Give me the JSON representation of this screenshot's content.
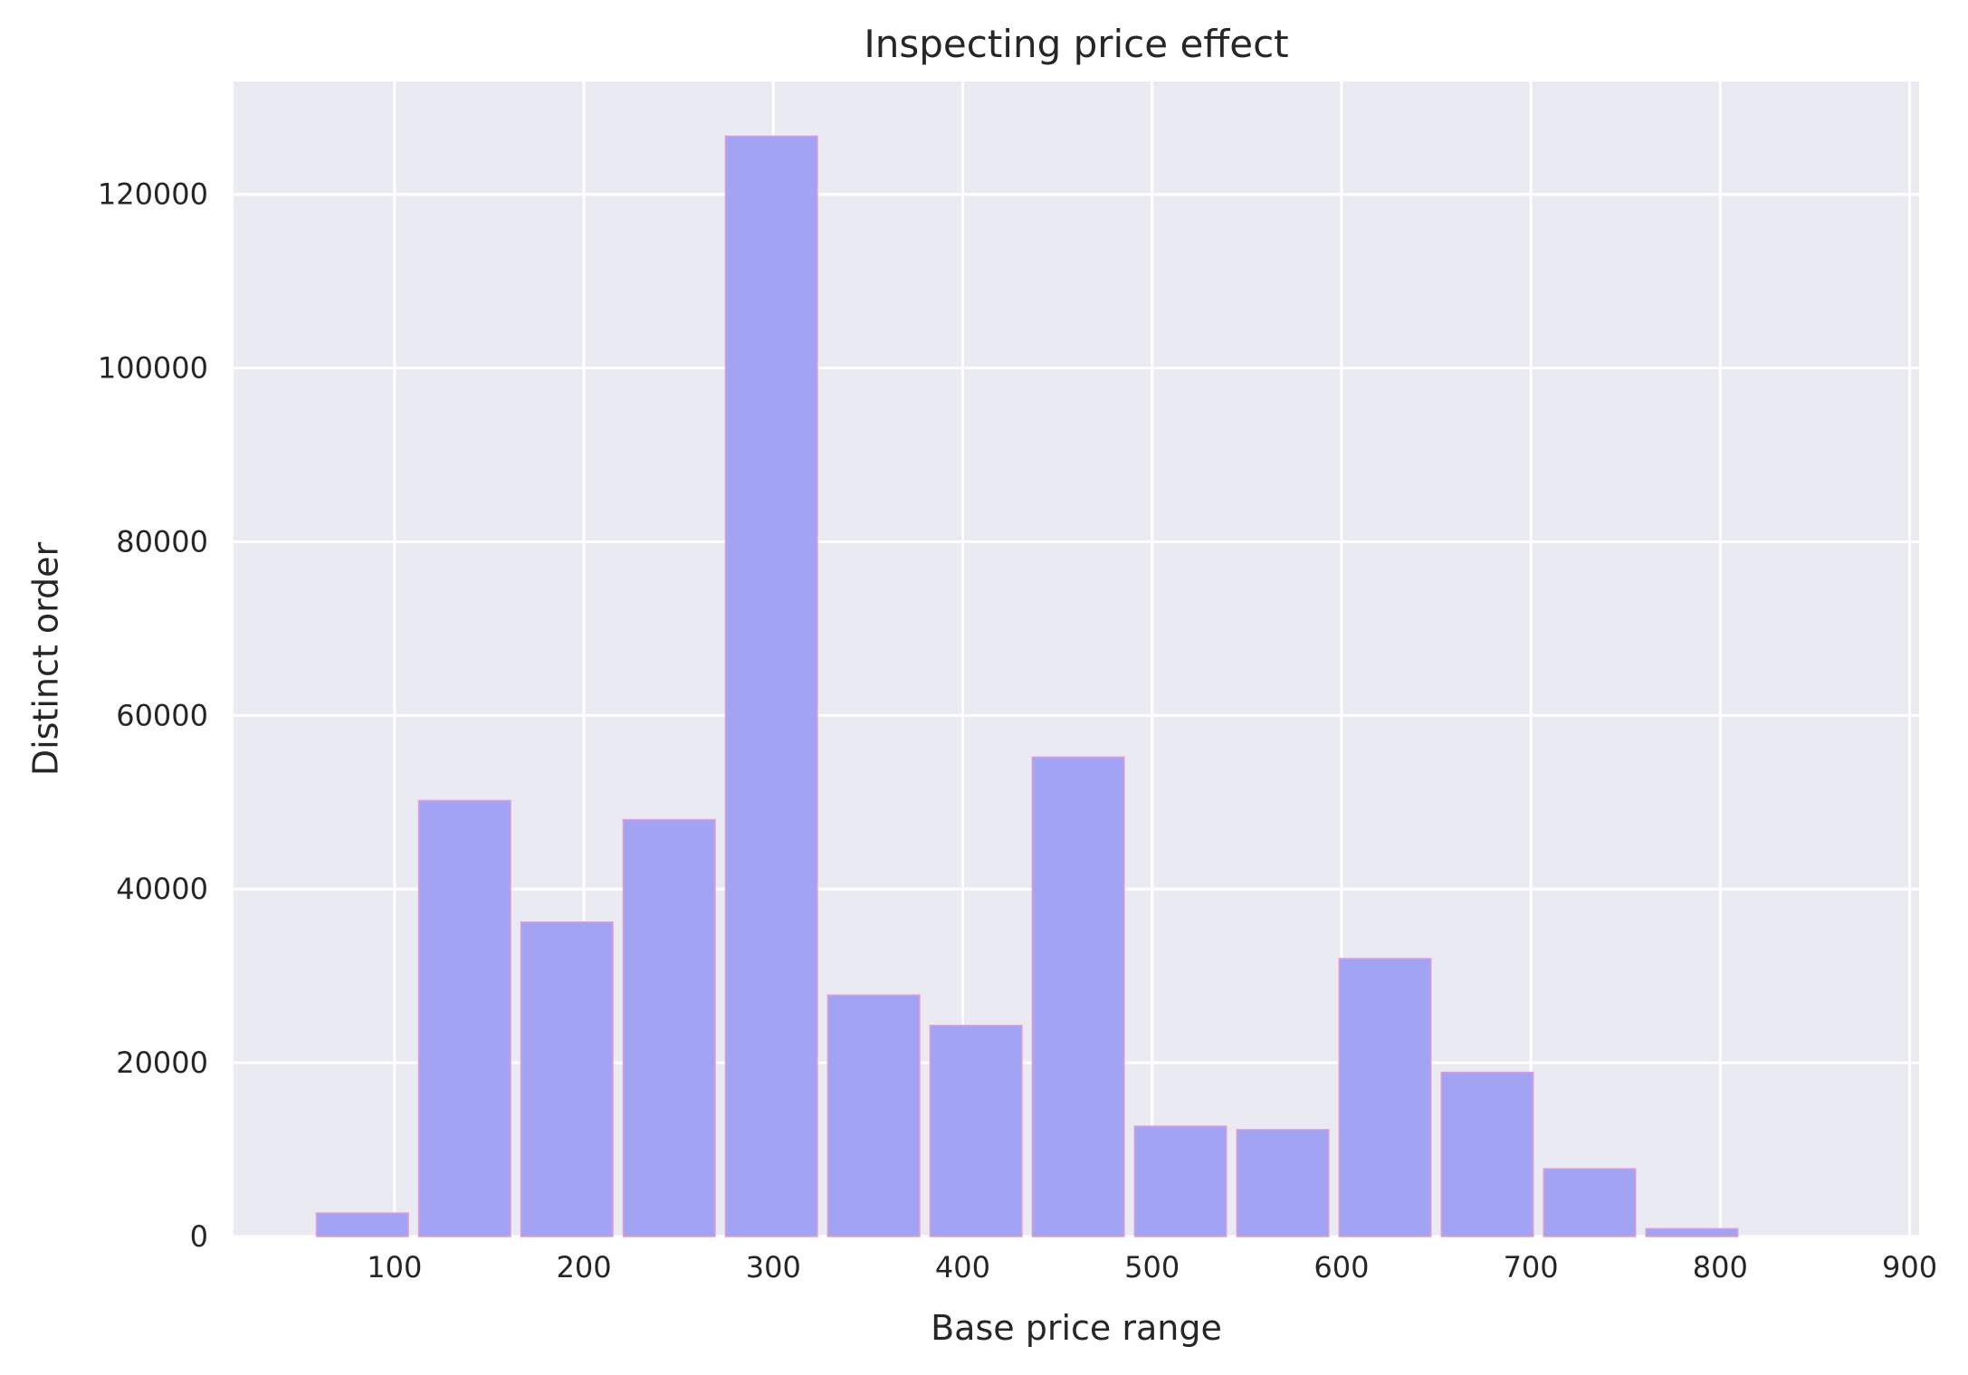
{
  "chart_data": {
    "type": "bar",
    "title": "Inspecting price effect",
    "xlabel": "Base price range",
    "ylabel": "Distinct order",
    "xlim": [
      15,
      905
    ],
    "ylim": [
      0,
      133000
    ],
    "x_ticks": [
      100,
      200,
      300,
      400,
      500,
      600,
      700,
      800,
      900
    ],
    "y_ticks": [
      0,
      20000,
      40000,
      60000,
      80000,
      100000,
      120000
    ],
    "grid": true,
    "bar_width": 48.5,
    "bars": [
      {
        "x": 83,
        "value": 2700
      },
      {
        "x": 137,
        "value": 50200
      },
      {
        "x": 191,
        "value": 36200
      },
      {
        "x": 245,
        "value": 48000
      },
      {
        "x": 299,
        "value": 126700
      },
      {
        "x": 353,
        "value": 27800
      },
      {
        "x": 407,
        "value": 24300
      },
      {
        "x": 461,
        "value": 55200
      },
      {
        "x": 515,
        "value": 12700
      },
      {
        "x": 569,
        "value": 12300
      },
      {
        "x": 623,
        "value": 32000
      },
      {
        "x": 677,
        "value": 18900
      },
      {
        "x": 731,
        "value": 7800
      },
      {
        "x": 785,
        "value": 900
      }
    ],
    "colors": {
      "background": "#eaeaf2",
      "bar_fill": "#a3a3f3",
      "bar_edge": "#e39bd4",
      "grid": "#ffffff",
      "text": "#262626"
    }
  }
}
